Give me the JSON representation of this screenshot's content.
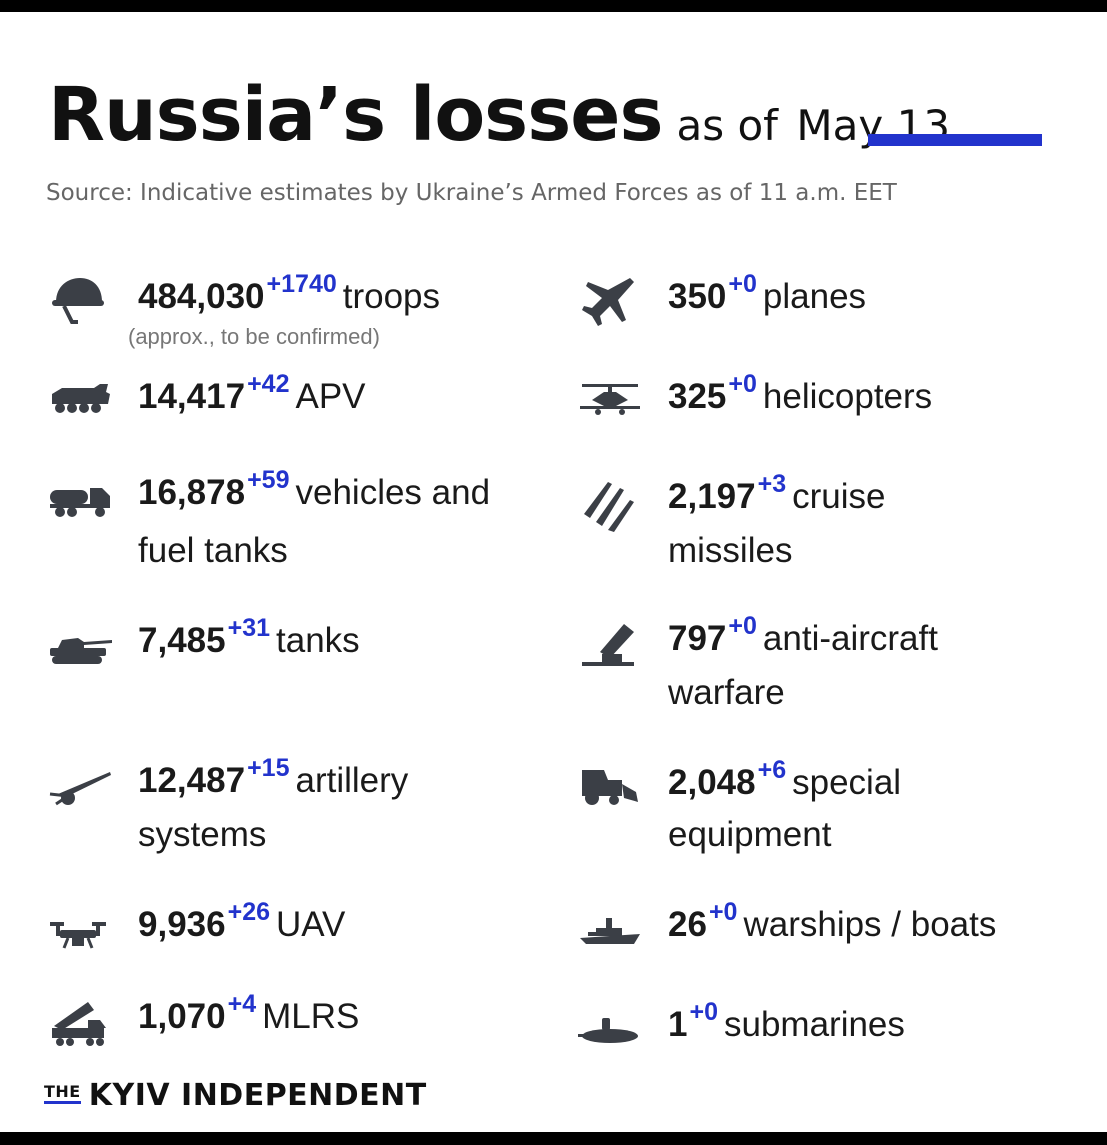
{
  "title": {
    "main": "Russia’s losses",
    "sub": "as of",
    "date": "May 13"
  },
  "source": "Source: Indicative estimates by Ukraine’s Armed Forces as of 11 a.m. EET",
  "left": [
    {
      "icon": "helmet-icon",
      "count": "484,030",
      "delta": "+1740",
      "label": "troops",
      "note": "(approx., to be confirmed)"
    },
    {
      "icon": "apv-icon",
      "count": "14,417",
      "delta": "+42",
      "label": "APV"
    },
    {
      "icon": "fuel-truck-icon",
      "count": "16,878",
      "delta": "+59",
      "label": "vehicles and",
      "label2": "fuel tanks"
    },
    {
      "icon": "tank-icon",
      "count": "7,485",
      "delta": "+31",
      "label": "tanks"
    },
    {
      "icon": "artillery-icon",
      "count": "12,487",
      "delta": "+15",
      "label": "artillery",
      "label2": "systems"
    },
    {
      "icon": "drone-icon",
      "count": "9,936",
      "delta": "+26",
      "label": "UAV"
    },
    {
      "icon": "mlrs-icon",
      "count": "1,070",
      "delta": "+4",
      "label": "MLRS"
    }
  ],
  "right": [
    {
      "icon": "plane-icon",
      "count": "350",
      "delta": "+0",
      "label": "planes"
    },
    {
      "icon": "helicopter-icon",
      "count": "325",
      "delta": "+0",
      "label": "helicopters"
    },
    {
      "icon": "missile-icon",
      "count": "2,197",
      "delta": "+3",
      "label": "cruise",
      "label2": "missiles"
    },
    {
      "icon": "anti-aircraft-icon",
      "count": "797",
      "delta": "+0",
      "label": "anti-aircraft",
      "label2": "warfare"
    },
    {
      "icon": "special-equipment-icon",
      "count": "2,048",
      "delta": "+6",
      "label": "special",
      "label2": "equipment"
    },
    {
      "icon": "warship-icon",
      "count": "26",
      "delta": "+0",
      "label": "warships / boats"
    },
    {
      "icon": "submarine-icon",
      "count": "1",
      "delta": "+0",
      "label": "submarines"
    }
  ],
  "footer": {
    "the": "THE",
    "brand": "KYIV INDEPENDENT"
  },
  "colors": {
    "accent": "#2233cc",
    "text": "#1a1a1a",
    "icon": "#3b3f46"
  }
}
